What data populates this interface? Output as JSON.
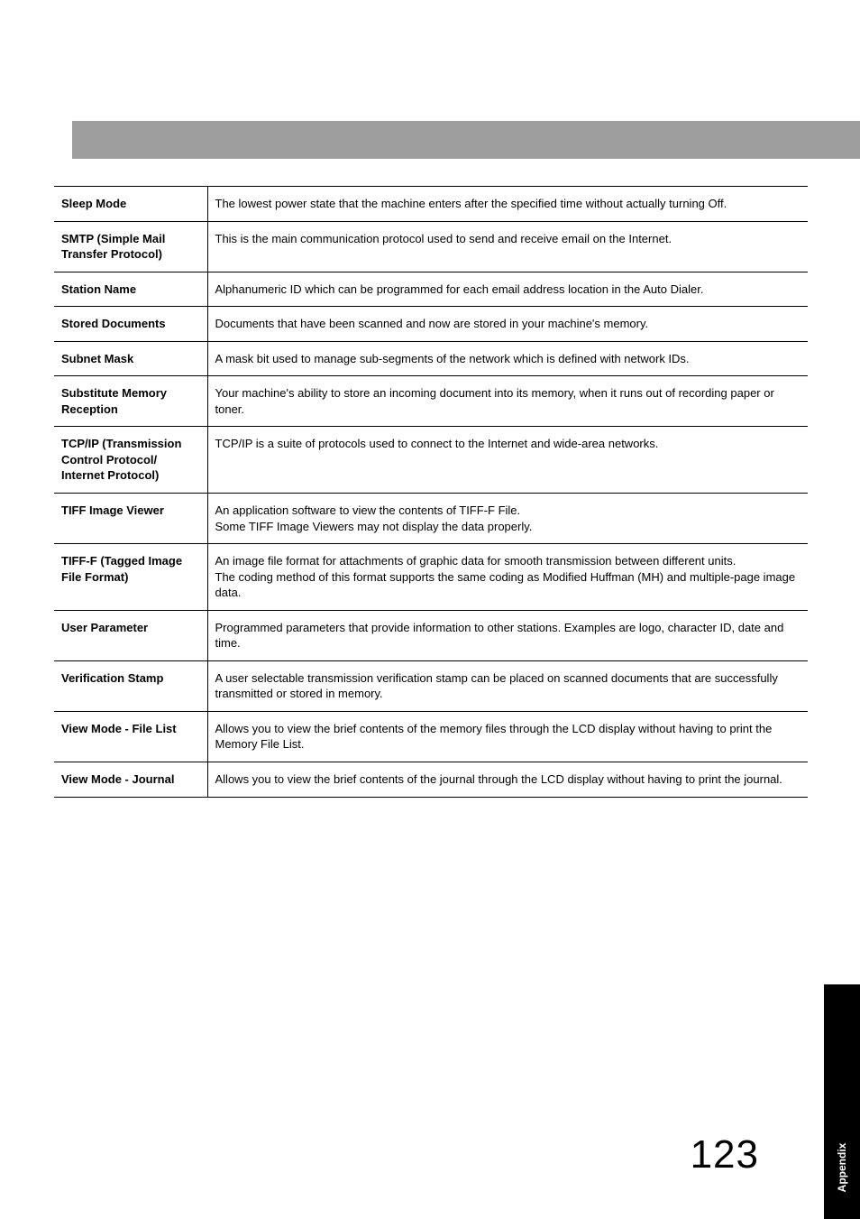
{
  "page": {
    "number": "123",
    "side_tab_label": "Appendix",
    "colors": {
      "header_band": "#9e9e9e",
      "side_tab_bg": "#000000",
      "side_tab_text": "#ffffff",
      "text": "#000000",
      "border": "#000000",
      "background": "#ffffff"
    }
  },
  "glossary": {
    "rows": [
      {
        "term": "Sleep Mode",
        "definition": "The lowest power state that the machine enters after the specified time without actually turning Off."
      },
      {
        "term": "SMTP (Simple Mail Transfer Protocol)",
        "definition": "This is the main communication protocol used to send and receive email on the Internet."
      },
      {
        "term": "Station Name",
        "definition": "Alphanumeric ID which can be programmed for each email address location in the Auto Dialer."
      },
      {
        "term": "Stored Documents",
        "definition": "Documents that have been scanned and now are stored in your machine's memory."
      },
      {
        "term": "Subnet Mask",
        "definition": "A mask bit used to manage sub-segments of the network which is defined with network IDs."
      },
      {
        "term": "Substitute Memory Reception",
        "definition": "Your machine's ability to store an incoming document into its memory, when it runs out of recording paper or toner."
      },
      {
        "term": "TCP/IP (Transmission Control Protocol/ Internet Protocol)",
        "definition": "TCP/IP is a suite of protocols used to connect to the Internet and wide-area networks."
      },
      {
        "term": "TIFF Image Viewer",
        "definition": "An application software to view the contents of TIFF-F File.\nSome TIFF Image Viewers may not display the data properly."
      },
      {
        "term": "TIFF-F (Tagged Image File Format)",
        "definition": "An image file format for attachments of graphic data for smooth transmission between different units.\nThe coding method of this format supports the same coding as Modified Huffman (MH) and multiple-page image data."
      },
      {
        "term": "User Parameter",
        "definition": "Programmed parameters that provide information to other stations. Examples are logo, character ID, date and time."
      },
      {
        "term": "Verification Stamp",
        "definition": "A user selectable transmission verification stamp can be placed on scanned documents that are successfully transmitted or stored in memory."
      },
      {
        "term": "View Mode - File List",
        "definition": "Allows you to view the brief contents of the memory files through the LCD display without having to print the Memory File List."
      },
      {
        "term": "View Mode - Journal",
        "definition": "Allows you to view the brief contents of the journal through the LCD display without having to print the journal."
      }
    ]
  }
}
